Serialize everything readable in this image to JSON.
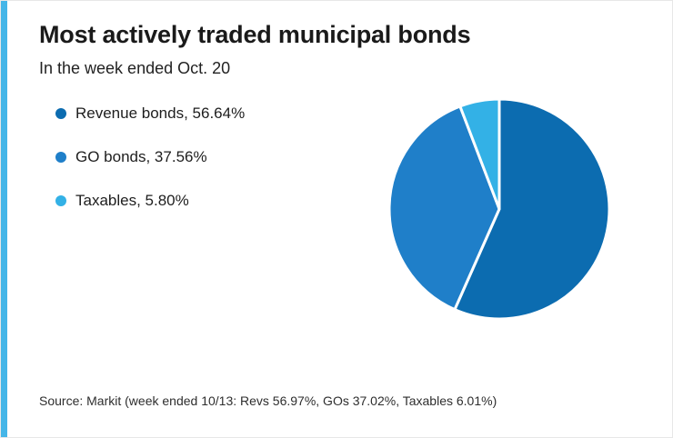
{
  "accent_color": "#45b6e8",
  "header": {
    "title": "Most actively traded municipal bonds",
    "subtitle": "In the week ended Oct. 20"
  },
  "legend": {
    "items": [
      {
        "label": "Revenue bonds, 56.64%"
      },
      {
        "label": "GO bonds, 37.56%"
      },
      {
        "label": "Taxables, 5.80%"
      }
    ]
  },
  "chart_data": {
    "type": "pie",
    "title": "Most actively traded municipal bonds",
    "subtitle": "In the week ended Oct. 20",
    "labels": [
      "Revenue bonds",
      "GO bonds",
      "Taxables"
    ],
    "values": [
      56.64,
      37.56,
      5.8
    ],
    "colors": [
      "#0c6cb0",
      "#1f7fc9",
      "#33b1e6"
    ],
    "slugs": [
      "revenue-bonds",
      "go-bonds",
      "taxables"
    ],
    "start_angle_deg": -90,
    "direction": "clockwise",
    "legend_position": "left",
    "slice_gap_stroke": "#ffffff"
  },
  "footer": {
    "source": "Source: Markit (week ended 10/13: Revs 56.97%, GOs 37.02%, Taxables 6.01%)"
  }
}
